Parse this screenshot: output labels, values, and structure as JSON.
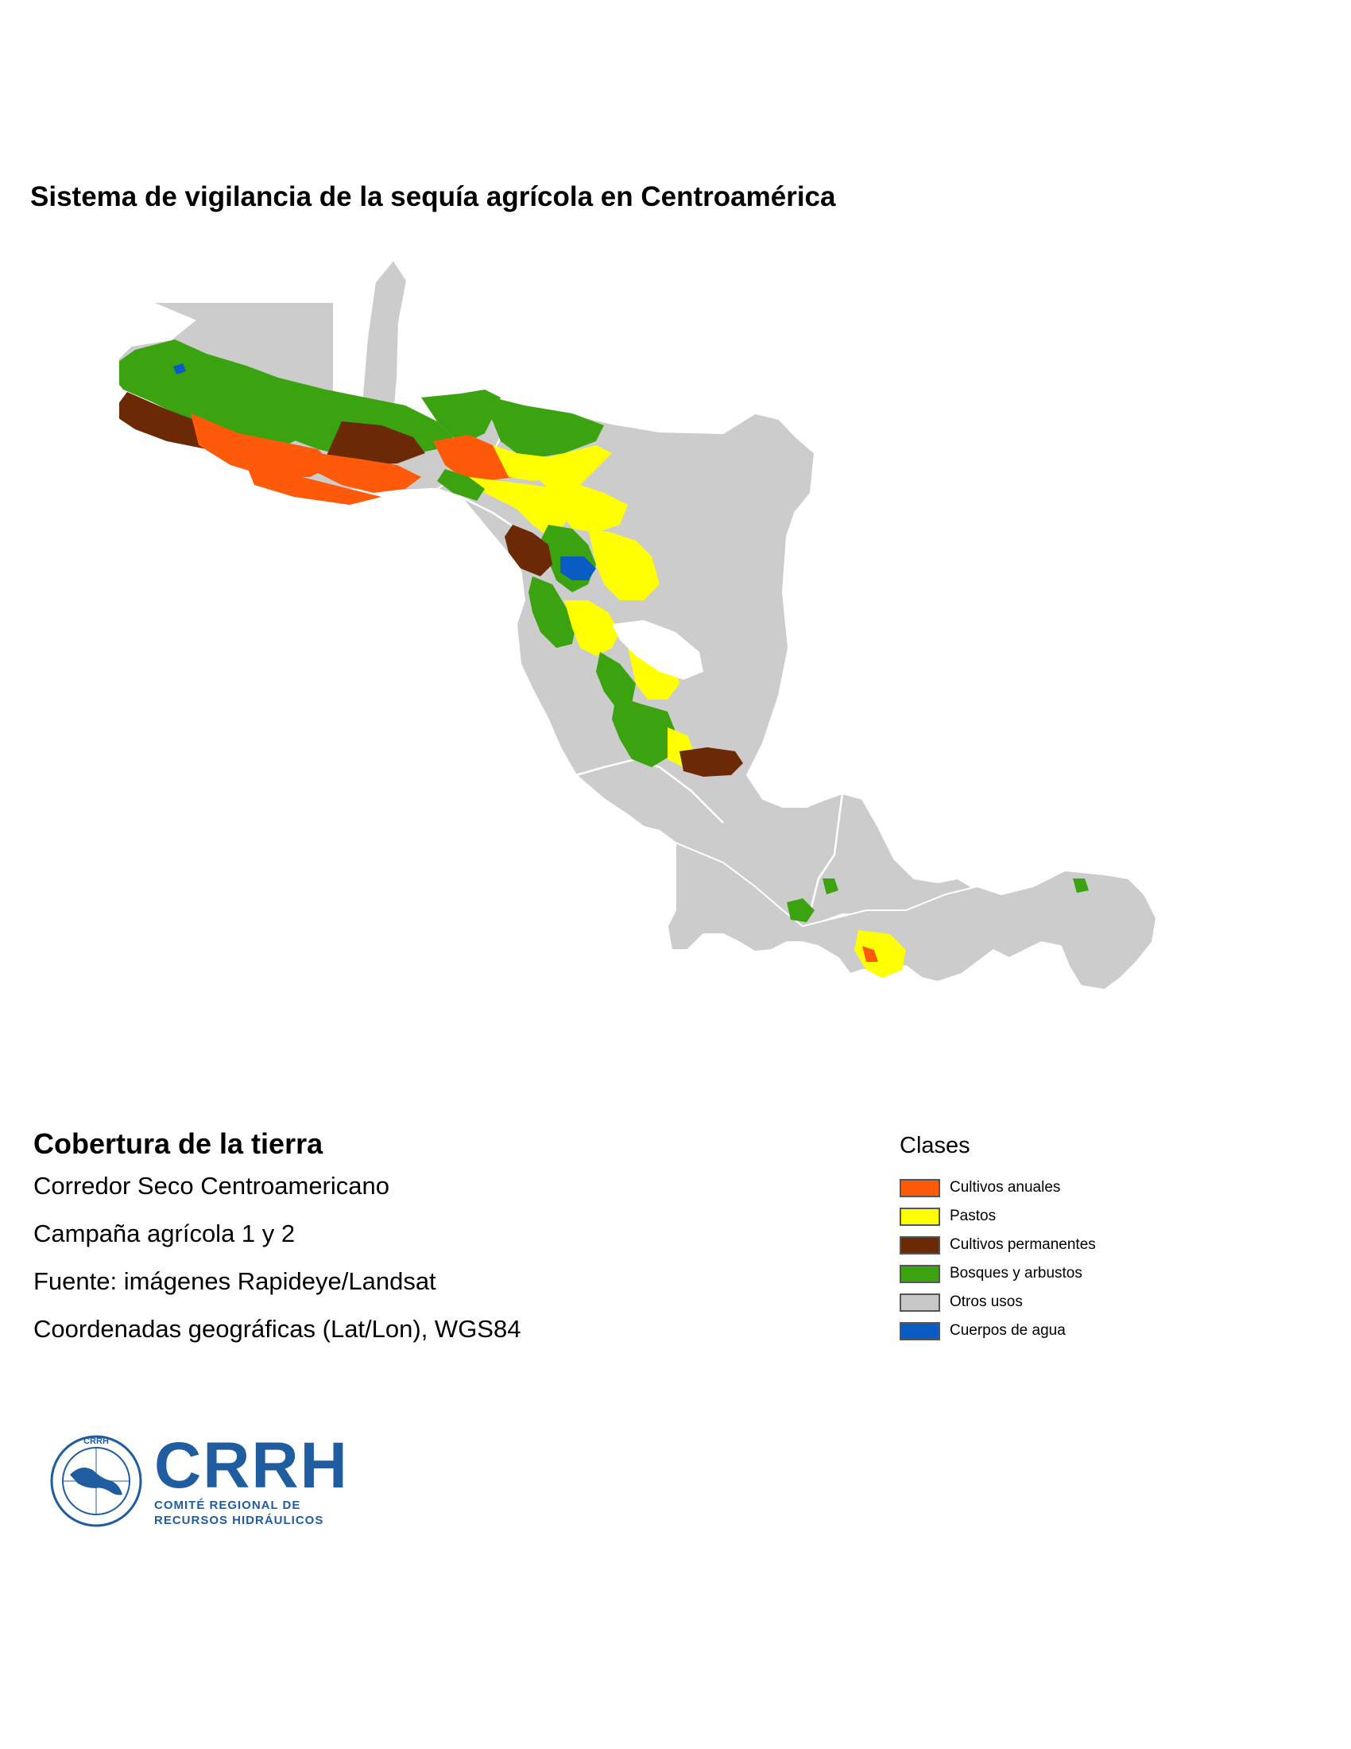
{
  "title": "Sistema de vigilancia de la sequía agrícola en Centroamérica",
  "info": {
    "heading": "Cobertura de la tierra",
    "lines": [
      "Corredor Seco Centroamericano",
      "Campaña agrícola 1 y 2",
      "Fuente: imágenes Rapideye/Landsat",
      "Coordenadas geográficas (Lat/Lon), WGS84"
    ]
  },
  "legend": {
    "title": "Clases",
    "items": [
      {
        "label": "Cultivos anuales",
        "color": "#ff5a0a"
      },
      {
        "label": "Pastos",
        "color": "#ffff00"
      },
      {
        "label": "Cultivos permanentes",
        "color": "#6b2a05"
      },
      {
        "label": "Bosques y arbustos",
        "color": "#3aa30f"
      },
      {
        "label": "Otros usos",
        "color": "#c8c8c8"
      },
      {
        "label": "Cuerpos de agua",
        "color": "#0a5bc4"
      }
    ]
  },
  "map": {
    "land_color": "#cccccc",
    "border_color": "#ffffff"
  },
  "logo": {
    "name": "CRRH",
    "subtitle_1": "COMITÉ REGIONAL DE",
    "subtitle_2": "RECURSOS HIDRÁULICOS",
    "emblem_text": "CRRH",
    "color": "#1f5da0"
  }
}
